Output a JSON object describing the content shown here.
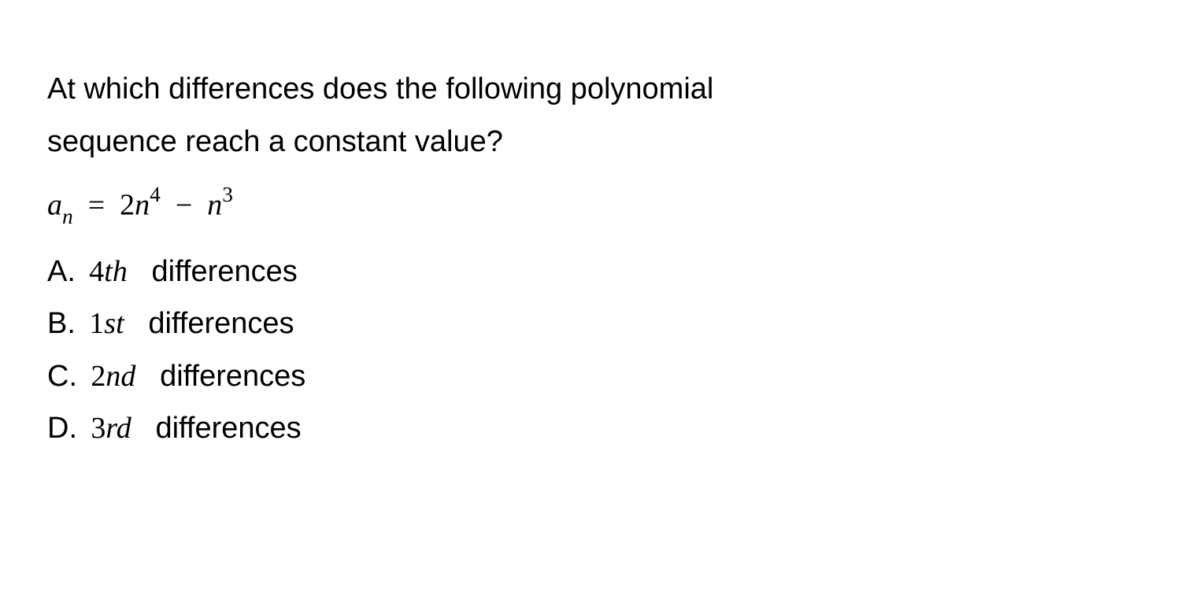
{
  "question": {
    "line1": "At which differences does the following polynomial",
    "line2": "sequence reach a constant value?"
  },
  "formula": {
    "lhs_var": "a",
    "lhs_sub": "n",
    "eq": "=",
    "t1_coeff": "2",
    "t1_var": "n",
    "t1_pow": "4",
    "minus": "−",
    "t2_var": "n",
    "t2_pow": "3"
  },
  "options": [
    {
      "label": "A.",
      "num": "4",
      "ord": "th",
      "suffix": "differences"
    },
    {
      "label": "B.",
      "num": "1",
      "ord": "st",
      "suffix": "differences"
    },
    {
      "label": "C.",
      "num": "2",
      "ord": "nd",
      "suffix": "differences"
    },
    {
      "label": "D.",
      "num": "3",
      "ord": "rd",
      "suffix": "differences"
    }
  ],
  "style": {
    "background": "#ffffff",
    "text_color": "#000000",
    "body_fontsize": 38,
    "line_height": 1.75
  }
}
